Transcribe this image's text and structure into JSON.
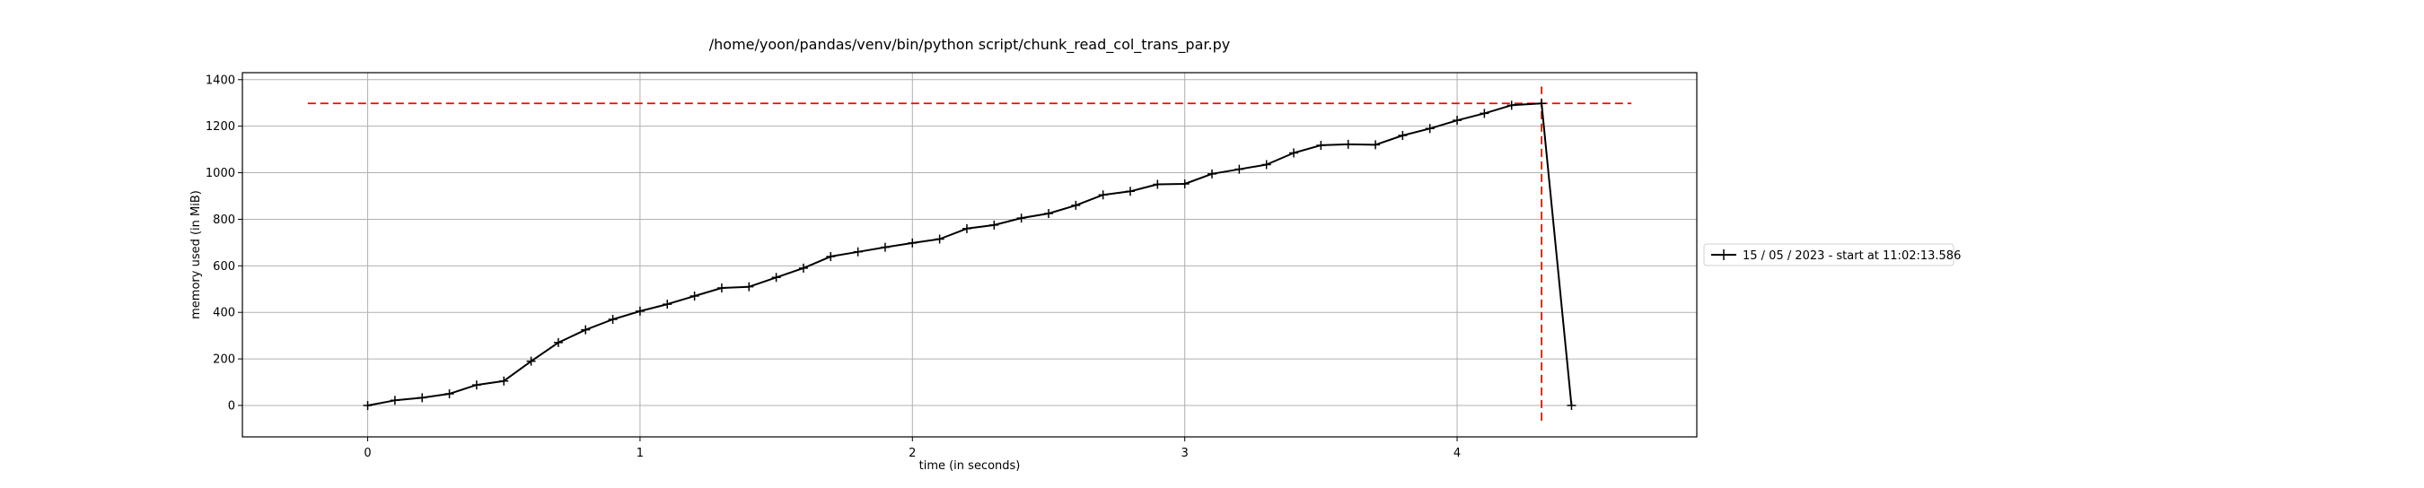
{
  "chart_data": {
    "type": "line",
    "title": "/home/yoon/pandas/venv/bin/python script/chunk_read_col_trans_par.py",
    "xlabel": "time (in seconds)",
    "ylabel": "memory used (in MiB)",
    "xlim": [
      -0.46,
      4.88
    ],
    "ylim": [
      -135,
      1430
    ],
    "xticks": [
      0,
      1,
      2,
      3,
      4
    ],
    "yticks": [
      0,
      200,
      400,
      600,
      800,
      1000,
      1200,
      1400
    ],
    "grid": true,
    "legend_placement": "right, outside plot",
    "series": [
      {
        "name": "15 / 05 / 2023 - start at 11:02:13.586",
        "color": "#000000",
        "marker": "+",
        "x": [
          0.0,
          0.1,
          0.2,
          0.3,
          0.4,
          0.5,
          0.6,
          0.7,
          0.8,
          0.9,
          1.0,
          1.1,
          1.2,
          1.3,
          1.4,
          1.5,
          1.6,
          1.7,
          1.8,
          1.9,
          2.0,
          2.1,
          2.2,
          2.3,
          2.4,
          2.5,
          2.6,
          2.7,
          2.8,
          2.9,
          3.0,
          3.1,
          3.2,
          3.3,
          3.4,
          3.5,
          3.6,
          3.7,
          3.8,
          3.9,
          4.0,
          4.1,
          4.2,
          4.31,
          4.42
        ],
        "y": [
          0,
          22,
          33,
          50,
          88,
          105,
          190,
          270,
          325,
          370,
          405,
          435,
          470,
          505,
          510,
          550,
          590,
          640,
          660,
          680,
          698,
          715,
          760,
          775,
          805,
          825,
          860,
          905,
          920,
          950,
          952,
          995,
          1015,
          1035,
          1085,
          1118,
          1122,
          1120,
          1160,
          1190,
          1225,
          1255,
          1290,
          1298,
          0
        ]
      }
    ],
    "reference_lines": [
      {
        "orientation": "horizontal",
        "y": 1298,
        "x_range": [
          -0.22,
          4.64
        ],
        "color": "#ff0000",
        "style": "dashed"
      },
      {
        "orientation": "vertical",
        "x": 4.31,
        "y_range": [
          -65,
          1370
        ],
        "color": "#ff0000",
        "style": "dashed"
      }
    ]
  }
}
